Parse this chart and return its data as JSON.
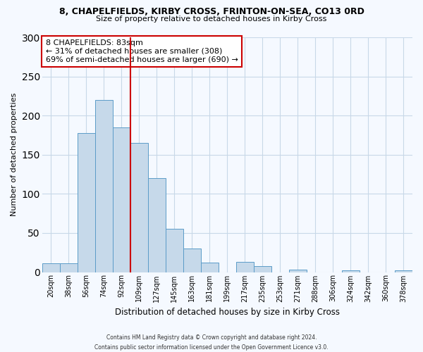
{
  "title1": "8, CHAPELFIELDS, KIRBY CROSS, FRINTON-ON-SEA, CO13 0RD",
  "title2": "Size of property relative to detached houses in Kirby Cross",
  "xlabel": "Distribution of detached houses by size in Kirby Cross",
  "ylabel": "Number of detached properties",
  "bar_labels": [
    "20sqm",
    "38sqm",
    "56sqm",
    "74sqm",
    "92sqm",
    "109sqm",
    "127sqm",
    "145sqm",
    "163sqm",
    "181sqm",
    "199sqm",
    "217sqm",
    "235sqm",
    "253sqm",
    "271sqm",
    "288sqm",
    "306sqm",
    "324sqm",
    "342sqm",
    "360sqm",
    "378sqm"
  ],
  "bar_values": [
    11,
    11,
    178,
    220,
    185,
    165,
    120,
    55,
    30,
    12,
    0,
    13,
    8,
    0,
    3,
    0,
    0,
    2,
    0,
    0,
    2
  ],
  "bar_color": "#c6d9ea",
  "bar_edge_color": "#5b9cc8",
  "vline_x_index": 4,
  "vline_color": "#cc0000",
  "annotation_text": "8 CHAPELFIELDS: 83sqm\n← 31% of detached houses are smaller (308)\n69% of semi-detached houses are larger (690) →",
  "annotation_box_color": "#ffffff",
  "annotation_box_edge_color": "#cc0000",
  "ylim": [
    0,
    300
  ],
  "yticks": [
    0,
    50,
    100,
    150,
    200,
    250,
    300
  ],
  "footnote": "Contains HM Land Registry data © Crown copyright and database right 2024.\nContains public sector information licensed under the Open Government Licence v3.0.",
  "bg_color": "#f5f9ff",
  "grid_color": "#c8d8e8"
}
